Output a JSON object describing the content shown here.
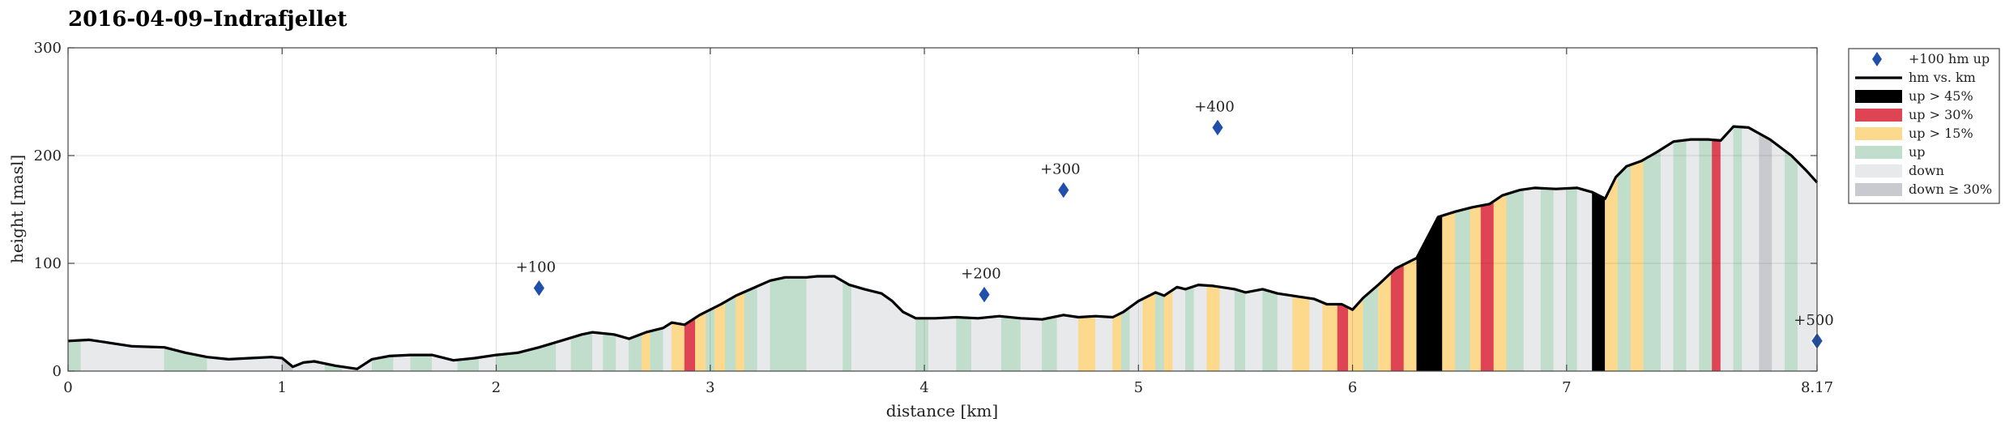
{
  "chart_data": {
    "type": "area",
    "title": "2016-04-09–Indrafjellet",
    "xlabel": "distance [km]",
    "ylabel": "height [masl]",
    "xlim": [
      0,
      8.17
    ],
    "ylim": [
      0,
      300
    ],
    "xticks": [
      "0",
      "1",
      "2",
      "3",
      "4",
      "5",
      "6",
      "7",
      "8.17"
    ],
    "xtick_values": [
      0,
      1,
      2,
      3,
      4,
      5,
      6,
      7,
      8.17
    ],
    "yticks": [
      "0",
      "100",
      "200",
      "300"
    ],
    "ytick_values": [
      0,
      100,
      200,
      300
    ],
    "grid": true,
    "legend_position": "outside-right",
    "legend": [
      {
        "key": "marker",
        "label": "+100 hm up",
        "color": "#1f4fa8"
      },
      {
        "key": "line",
        "label": "hm vs. km",
        "color": "#000000"
      },
      {
        "key": "up45",
        "label": "up > 45%",
        "color": "#000000"
      },
      {
        "key": "up30",
        "label": "up > 30%",
        "color": "#de4453"
      },
      {
        "key": "up15",
        "label": "up > 15%",
        "color": "#fdd98e"
      },
      {
        "key": "up",
        "label": "up",
        "color": "#c0decb"
      },
      {
        "key": "down",
        "label": "down",
        "color": "#e8e9eb"
      },
      {
        "key": "down30",
        "label": "down ≥ 30%",
        "color": "#c8cad0"
      }
    ],
    "profile": [
      [
        0,
        28
      ],
      [
        0.1,
        29
      ],
      [
        0.2,
        26
      ],
      [
        0.3,
        23
      ],
      [
        0.45,
        22
      ],
      [
        0.55,
        17
      ],
      [
        0.65,
        13
      ],
      [
        0.75,
        11
      ],
      [
        0.85,
        12
      ],
      [
        0.95,
        13
      ],
      [
        1.0,
        12
      ],
      [
        1.05,
        4
      ],
      [
        1.1,
        8
      ],
      [
        1.15,
        9
      ],
      [
        1.25,
        5
      ],
      [
        1.35,
        2
      ],
      [
        1.42,
        11
      ],
      [
        1.5,
        14
      ],
      [
        1.6,
        15
      ],
      [
        1.7,
        15
      ],
      [
        1.8,
        10
      ],
      [
        1.9,
        12
      ],
      [
        2.0,
        15
      ],
      [
        2.1,
        17
      ],
      [
        2.2,
        22
      ],
      [
        2.3,
        28
      ],
      [
        2.4,
        34
      ],
      [
        2.45,
        36
      ],
      [
        2.55,
        34
      ],
      [
        2.62,
        30
      ],
      [
        2.7,
        36
      ],
      [
        2.78,
        40
      ],
      [
        2.82,
        45
      ],
      [
        2.88,
        43
      ],
      [
        2.95,
        52
      ],
      [
        3.05,
        62
      ],
      [
        3.12,
        70
      ],
      [
        3.2,
        77
      ],
      [
        3.28,
        84
      ],
      [
        3.35,
        87
      ],
      [
        3.45,
        87
      ],
      [
        3.5,
        88
      ],
      [
        3.58,
        88
      ],
      [
        3.65,
        80
      ],
      [
        3.72,
        76
      ],
      [
        3.8,
        72
      ],
      [
        3.85,
        65
      ],
      [
        3.9,
        55
      ],
      [
        3.96,
        49
      ],
      [
        4.05,
        49
      ],
      [
        4.15,
        50
      ],
      [
        4.25,
        49
      ],
      [
        4.35,
        51
      ],
      [
        4.45,
        49
      ],
      [
        4.55,
        48
      ],
      [
        4.65,
        52
      ],
      [
        4.72,
        50
      ],
      [
        4.8,
        51
      ],
      [
        4.88,
        50
      ],
      [
        4.93,
        55
      ],
      [
        5.0,
        65
      ],
      [
        5.08,
        73
      ],
      [
        5.12,
        70
      ],
      [
        5.18,
        78
      ],
      [
        5.22,
        76
      ],
      [
        5.28,
        80
      ],
      [
        5.35,
        79
      ],
      [
        5.45,
        76
      ],
      [
        5.5,
        73
      ],
      [
        5.58,
        76
      ],
      [
        5.65,
        72
      ],
      [
        5.75,
        69
      ],
      [
        5.82,
        67
      ],
      [
        5.88,
        62
      ],
      [
        5.95,
        62
      ],
      [
        6.0,
        57
      ],
      [
        6.05,
        68
      ],
      [
        6.12,
        80
      ],
      [
        6.2,
        95
      ],
      [
        6.3,
        105
      ],
      [
        6.4,
        143
      ],
      [
        6.48,
        148
      ],
      [
        6.56,
        152
      ],
      [
        6.64,
        155
      ],
      [
        6.7,
        163
      ],
      [
        6.78,
        168
      ],
      [
        6.85,
        170
      ],
      [
        6.95,
        169
      ],
      [
        7.05,
        170
      ],
      [
        7.12,
        166
      ],
      [
        7.18,
        160
      ],
      [
        7.23,
        180
      ],
      [
        7.28,
        190
      ],
      [
        7.35,
        195
      ],
      [
        7.42,
        203
      ],
      [
        7.5,
        213
      ],
      [
        7.58,
        215
      ],
      [
        7.66,
        215
      ],
      [
        7.72,
        214
      ],
      [
        7.78,
        227
      ],
      [
        7.85,
        226
      ],
      [
        7.95,
        215
      ],
      [
        8.05,
        200
      ],
      [
        8.12,
        186
      ],
      [
        8.17,
        175
      ]
    ],
    "markers": [
      {
        "label": "+100",
        "x": 2.2,
        "y": 77
      },
      {
        "label": "+200",
        "x": 4.28,
        "y": 71
      },
      {
        "label": "+300",
        "x": 4.65,
        "y": 168
      },
      {
        "label": "+400",
        "x": 5.37,
        "y": 226
      },
      {
        "label": "+500",
        "x": 8.17,
        "y": 28
      }
    ]
  }
}
